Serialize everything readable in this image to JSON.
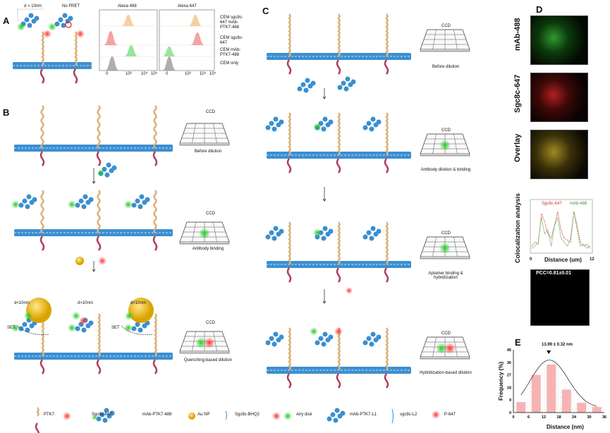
{
  "panels": {
    "A": "A",
    "B": "B",
    "C": "C",
    "D": "D",
    "E": "E"
  },
  "panelA": {
    "distance_label": "d > 10nm",
    "no_fret": "No FRET",
    "hist_titles": [
      "Alexa 488",
      "Alexa 647"
    ],
    "row_labels": [
      "CEM sgc8c-647 mAb-PTK7-488",
      "CEM sgc8c-647",
      "CEM mAb-PTK7-488",
      "CEM only"
    ],
    "x_ticks": [
      "0",
      "10³",
      "10⁴",
      "10⁵"
    ],
    "colors": {
      "orange": "#f5c48a",
      "red": "#f28b8b",
      "green": "#7ee07e",
      "gray": "#9a9a9a"
    }
  },
  "panelB": {
    "ccd": "CCD",
    "steps": [
      "Before dilution",
      "Antibody binding",
      "Quenching-based dilution"
    ],
    "d_labels": [
      "d<10nm",
      "d>10nm",
      "d<10nm"
    ],
    "set": "SET"
  },
  "panelC": {
    "ccd": "CCD",
    "steps": [
      "Before dilution",
      "Antibody dilution & binding",
      "Aptamer binding & hybridization",
      "Hybridization-based dilution"
    ]
  },
  "panelD": {
    "image_labels": [
      "mAb-488",
      "Sgc8c-647",
      "Overlay"
    ],
    "coloc_ylabel": "Colocalization analysis",
    "legend": [
      "Sgc8c-647",
      "mAb-488"
    ],
    "xlabel": "Distance (um)",
    "x_ticks": [
      "0",
      "12"
    ],
    "pcc": "PCC=0.81±0.01"
  },
  "legend": [
    "PTK7",
    "Sgc8c-647",
    "mAb-PTK7-488",
    "Au NP",
    "Sgc8c-BHQ2",
    "Airy disk",
    "mAb-PTK7-L1",
    "sgc8c-L2",
    "P-647"
  ],
  "chart_data": {
    "type": "bar",
    "title": "",
    "annotation": "13.99 ± 0.32 nm",
    "xlabel": "Distance (nm)",
    "ylabel": "Frequency (%)",
    "bin_centers": [
      3,
      9,
      15,
      21,
      27,
      33
    ],
    "values": [
      7.5,
      27,
      34.5,
      16.5,
      7,
      4
    ],
    "bin_width": 6,
    "xlim": [
      0,
      36
    ],
    "ylim": [
      0,
      45
    ],
    "x_ticks": [
      "0",
      "6",
      "12",
      "18",
      "24",
      "30",
      "36"
    ],
    "y_ticks": [
      "0",
      "9",
      "18",
      "27",
      "36",
      "45"
    ],
    "fit": {
      "type": "gaussian",
      "center": 13.99,
      "peak": 35.5,
      "sigma": 7.5
    },
    "bar_color": "#f7b3b3"
  }
}
